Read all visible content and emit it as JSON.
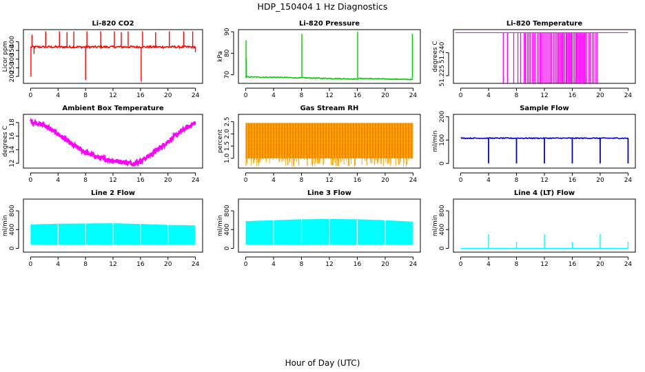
{
  "figure": {
    "title": "HDP_150404  1 Hz Diagnostics",
    "xlabel": "Hour of Day (UTC)"
  },
  "chart_data": [
    {
      "type": "line",
      "title": "Li-820 CO2",
      "ylabel": "Licor ppm",
      "color": "#ff0000",
      "xlim": [
        0,
        24
      ],
      "xticks": [
        0,
        4,
        8,
        12,
        16,
        20,
        24
      ],
      "ylim": [
        160,
        470
      ],
      "yticks": [
        200,
        250,
        300,
        350,
        400
      ],
      "baseline": 370,
      "noise": 6,
      "spikes": [
        {
          "x": 0.05,
          "y": 200
        },
        {
          "x": 0.2,
          "y": 440
        },
        {
          "x": 0.5,
          "y": 330
        },
        {
          "x": 2.2,
          "y": 460
        },
        {
          "x": 4.2,
          "y": 460
        },
        {
          "x": 5.3,
          "y": 455
        },
        {
          "x": 6.3,
          "y": 460
        },
        {
          "x": 8.0,
          "y": 180
        },
        {
          "x": 8.2,
          "y": 460
        },
        {
          "x": 10.2,
          "y": 460
        },
        {
          "x": 12.2,
          "y": 460
        },
        {
          "x": 13.2,
          "y": 455
        },
        {
          "x": 14.2,
          "y": 460
        },
        {
          "x": 16.1,
          "y": 170
        },
        {
          "x": 16.3,
          "y": 460
        },
        {
          "x": 18.2,
          "y": 455
        },
        {
          "x": 20.2,
          "y": 460
        },
        {
          "x": 22.3,
          "y": 460
        },
        {
          "x": 23.6,
          "y": 460
        },
        {
          "x": 24.0,
          "y": 340
        }
      ]
    },
    {
      "type": "line",
      "title": "Li-820 Pressure",
      "ylabel": "kPa",
      "color": "#00cc00",
      "xlim": [
        0,
        24
      ],
      "xticks": [
        0,
        4,
        8,
        12,
        16,
        20,
        24
      ],
      "ylim": [
        66,
        91
      ],
      "yticks": [
        70,
        80,
        90
      ],
      "baseline": 68.5,
      "noise": 0.2,
      "segments": [
        {
          "x0": 0.1,
          "x1": 4.0,
          "y0": 69.0,
          "y1": 68.8
        },
        {
          "x0": 4.0,
          "x1": 8.0,
          "y0": 68.9,
          "y1": 68.5
        },
        {
          "x0": 8.0,
          "x1": 16.0,
          "y0": 68.6,
          "y1": 68.0
        },
        {
          "x0": 16.0,
          "x1": 24.0,
          "y0": 68.3,
          "y1": 67.8
        }
      ],
      "spikes": [
        {
          "x": 0.05,
          "y": 86
        },
        {
          "x": 0.1,
          "y": 78
        },
        {
          "x": 8.05,
          "y": 89
        },
        {
          "x": 16.05,
          "y": 90
        },
        {
          "x": 23.9,
          "y": 89
        }
      ]
    },
    {
      "type": "line",
      "title": "Li-820 Temperature",
      "ylabel": "degrees C",
      "color": "#ff00ff",
      "xlim": [
        0,
        24
      ],
      "xticks": [
        0,
        4,
        8,
        12,
        16,
        20,
        24
      ],
      "ylim": [
        51.22,
        51.255
      ],
      "yticks": [
        51.225,
        51.24
      ],
      "baseline": 51.253,
      "drops": [
        6.1,
        6.7,
        7.6,
        8.2,
        8.6,
        9.1,
        9.3,
        9.6,
        9.8,
        10.0,
        10.3,
        10.5,
        10.7,
        11.0,
        11.2,
        11.4,
        11.5,
        11.7,
        11.9,
        12.1,
        12.3,
        12.5,
        12.7,
        12.9,
        13.0,
        13.3,
        13.5,
        13.7,
        13.9,
        14.0,
        14.2,
        14.4,
        14.6,
        14.7,
        14.9,
        15.1,
        15.2,
        15.4,
        15.6,
        15.8,
        15.9,
        16.1,
        16.3,
        16.5,
        16.6,
        16.8,
        17.0,
        17.2,
        17.4,
        17.6,
        17.8,
        17.9,
        18.1,
        18.4,
        18.6,
        18.9,
        19.1,
        19.4,
        19.6
      ]
    },
    {
      "type": "line",
      "title": "Ambient Box Temperature",
      "ylabel": "degrees C",
      "color": "#ff00ff",
      "xlim": [
        0,
        24
      ],
      "xticks": [
        0,
        4,
        8,
        12,
        16,
        20,
        24
      ],
      "ylim": [
        11.3,
        19.2
      ],
      "yticks": [
        12,
        14,
        16,
        18
      ],
      "x": [
        0,
        2,
        4,
        6,
        8,
        10,
        12,
        14,
        15,
        16,
        18,
        20,
        22,
        24
      ],
      "y": [
        18.2,
        17.6,
        16.3,
        14.8,
        13.6,
        12.8,
        12.4,
        12.1,
        12.0,
        12.3,
        13.6,
        15.2,
        16.8,
        18.0
      ],
      "noise": 0.35
    },
    {
      "type": "line",
      "title": "Gas Stream RH",
      "ylabel": "percent",
      "color": "#ffa500",
      "xlim": [
        0,
        24
      ],
      "xticks": [
        0,
        4,
        8,
        12,
        16,
        20,
        24
      ],
      "ylim": [
        0.6,
        2.8
      ],
      "yticks": [
        1.0,
        1.5,
        2.0,
        2.5
      ],
      "upper": 2.45,
      "lower": 1.0,
      "accent": "#cc0000"
    },
    {
      "type": "line",
      "title": "Sample Flow",
      "ylabel": "ml/min",
      "color": "#0000cc",
      "xlim": [
        0,
        24
      ],
      "xticks": [
        0,
        4,
        8,
        12,
        16,
        20,
        24
      ],
      "ylim": [
        -20,
        210
      ],
      "yticks": [
        0,
        100,
        200
      ],
      "baseline": 108,
      "noise": 2,
      "drops": [
        {
          "x": 4.0,
          "y": 0
        },
        {
          "x": 8.0,
          "y": 0
        },
        {
          "x": 12.0,
          "y": 0
        },
        {
          "x": 16.0,
          "y": 0
        },
        {
          "x": 20.0,
          "y": 0
        },
        {
          "x": 24.0,
          "y": 0
        }
      ]
    },
    {
      "type": "area",
      "title": "Line 2 Flow",
      "ylabel": "ml/min",
      "color": "#00ffff",
      "xlim": [
        0,
        24
      ],
      "xticks": [
        0,
        4,
        8,
        12,
        16,
        20,
        24
      ],
      "ylim": [
        -80,
        1050
      ],
      "yticks": [
        0,
        400,
        800
      ],
      "upper_x": [
        0,
        4,
        8,
        12,
        16,
        20,
        24
      ],
      "upper_y": [
        510,
        525,
        530,
        535,
        520,
        500,
        490
      ],
      "lower": 80,
      "gaps": [
        4.0,
        8.0,
        12.0,
        16.0,
        20.0,
        24.0
      ]
    },
    {
      "type": "area",
      "title": "Line 3 Flow",
      "ylabel": "ml/min",
      "color": "#00ffff",
      "xlim": [
        0,
        24
      ],
      "xticks": [
        0,
        4,
        8,
        12,
        16,
        20,
        24
      ],
      "ylim": [
        -80,
        1050
      ],
      "yticks": [
        0,
        400,
        800
      ],
      "upper_x": [
        0,
        4,
        8,
        12,
        16,
        20,
        24
      ],
      "upper_y": [
        580,
        600,
        620,
        625,
        620,
        600,
        570
      ],
      "lower": 80,
      "gaps": [
        4.0,
        8.0,
        12.0,
        16.0,
        20.0,
        24.0
      ]
    },
    {
      "type": "line",
      "title": "Line 4 (LT) Flow",
      "ylabel": "ml/min",
      "color": "#00ffff",
      "xlim": [
        0,
        24
      ],
      "xticks": [
        0,
        4,
        8,
        12,
        16,
        20,
        24
      ],
      "ylim": [
        -80,
        1050
      ],
      "yticks": [
        0,
        400,
        800
      ],
      "baseline": 0,
      "spikes": [
        {
          "x": 4.0,
          "y": 300
        },
        {
          "x": 8.0,
          "y": 140
        },
        {
          "x": 12.0,
          "y": 300
        },
        {
          "x": 16.0,
          "y": 140
        },
        {
          "x": 20.0,
          "y": 300
        },
        {
          "x": 24.0,
          "y": 140
        }
      ]
    }
  ]
}
